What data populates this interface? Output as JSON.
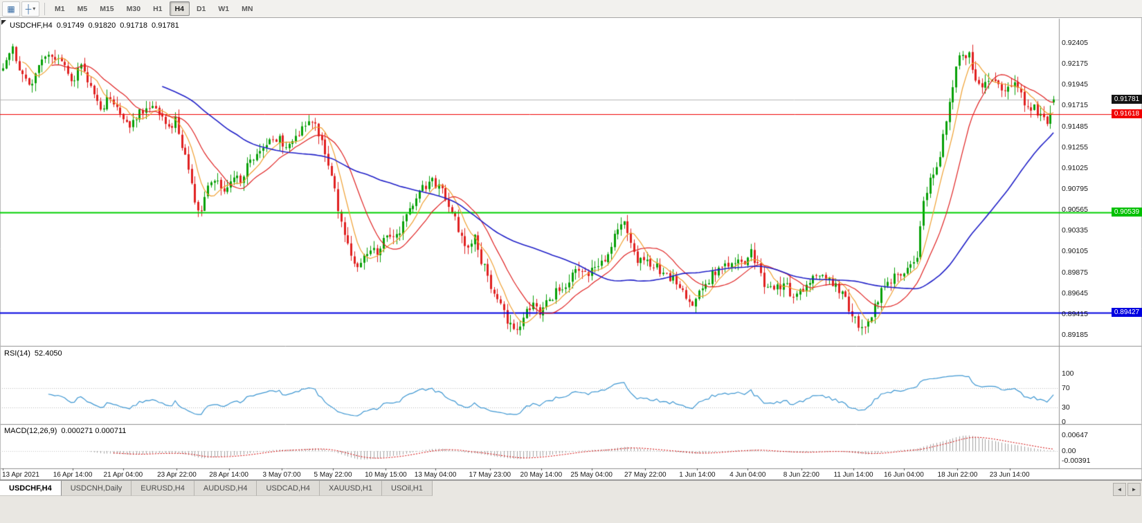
{
  "toolbar": {
    "icons": [
      {
        "name": "chart-window-icon",
        "glyph": "▦"
      },
      {
        "name": "crosshair-tool-icon",
        "glyph": "┼"
      },
      {
        "name": "dropdown-caret-icon",
        "glyph": "▾"
      }
    ],
    "timeframes": [
      {
        "label": "M1",
        "active": false
      },
      {
        "label": "M5",
        "active": false
      },
      {
        "label": "M15",
        "active": false
      },
      {
        "label": "M30",
        "active": false
      },
      {
        "label": "H1",
        "active": false
      },
      {
        "label": "H4",
        "active": true
      },
      {
        "label": "D1",
        "active": false
      },
      {
        "label": "W1",
        "active": false
      },
      {
        "label": "MN",
        "active": false
      }
    ]
  },
  "chart": {
    "title": {
      "symbol": "USDCHF,H4",
      "open": "0.91749",
      "high": "0.91820",
      "low": "0.91718",
      "close": "0.91781"
    }
  },
  "price_axis": {
    "ticks": [
      "0.92405",
      "0.92175",
      "0.91945",
      "0.91715",
      "0.91485",
      "0.91255",
      "0.91025",
      "0.90795",
      "0.90565",
      "0.90335",
      "0.90105",
      "0.89875",
      "0.89645",
      "0.89415",
      "0.89185"
    ],
    "badges": [
      {
        "value": "0.91781",
        "price": 0.91781,
        "color": "#141414"
      },
      {
        "value": "0.91618",
        "price": 0.91618,
        "color": "#f00000"
      },
      {
        "value": "0.90539",
        "price": 0.90539,
        "color": "#00c000"
      },
      {
        "value": "0.89427",
        "price": 0.89427,
        "color": "#0000e0"
      }
    ]
  },
  "indicators": {
    "rsi": {
      "name": "RSI(14)",
      "value": "52.4050",
      "levels": [
        "100",
        "70",
        "30",
        "0"
      ],
      "level_values": [
        100,
        70,
        30,
        0
      ],
      "line_color": "#3C96D2",
      "dotted_levels": [
        70,
        30
      ]
    },
    "macd": {
      "name": "MACD(12,26,9)",
      "values_text": "0.000271 0.000711",
      "main_value": 0.000271,
      "signal_value": 0.000711,
      "levels": [
        "0.00647",
        "0.00",
        "-0.00391"
      ],
      "level_values": [
        0.00647,
        0,
        -0.00391
      ],
      "histogram_color": "#a2a2a2",
      "signal_color": "#d40000"
    }
  },
  "time_axis": {
    "labels": [
      {
        "text": "13 Apr 2021",
        "bar": 0
      },
      {
        "text": "16 Apr 14:00",
        "bar": 21.5
      },
      {
        "text": "21 Apr 04:00",
        "bar": 37
      },
      {
        "text": "23 Apr 22:00",
        "bar": 53.5
      },
      {
        "text": "28 Apr 14:00",
        "bar": 69.5
      },
      {
        "text": "3 May 07:00",
        "bar": 85.75
      },
      {
        "text": "5 May 22:00",
        "bar": 101.5
      },
      {
        "text": "10 May 15:00",
        "bar": 117.75
      },
      {
        "text": "13 May 04:00",
        "bar": 133
      },
      {
        "text": "17 May 23:00",
        "bar": 149.75
      },
      {
        "text": "20 May 14:00",
        "bar": 165.5
      },
      {
        "text": "25 May 04:00",
        "bar": 181
      },
      {
        "text": "27 May 22:00",
        "bar": 197.5
      },
      {
        "text": "1 Jun 14:00",
        "bar": 213.5
      },
      {
        "text": "4 Jun 04:00",
        "bar": 229
      },
      {
        "text": "8 Jun 22:00",
        "bar": 245.5
      },
      {
        "text": "11 Jun 14:00",
        "bar": 261.5
      },
      {
        "text": "16 Jun 04:00",
        "bar": 277
      },
      {
        "text": "18 Jun 22:00",
        "bar": 293.5
      },
      {
        "text": "23 Jun 14:00",
        "bar": 309.5
      }
    ]
  },
  "tabs": {
    "items": [
      {
        "label": "USDCHF,H4",
        "active": true
      },
      {
        "label": "USDCNH,Daily",
        "active": false
      },
      {
        "label": "EURUSD,H4",
        "active": false
      },
      {
        "label": "AUDUSD,H4",
        "active": false
      },
      {
        "label": "USDCAD,H4",
        "active": false
      },
      {
        "label": "XAUUSD,H1",
        "active": false
      },
      {
        "label": "USOil,H1",
        "active": false
      }
    ],
    "scroll_left": "◄",
    "scroll_right": "►"
  },
  "chart_data": {
    "type": "candlestick",
    "symbol": "USDCHF",
    "timeframe": "H4",
    "ohlc_current": {
      "open": 0.91749,
      "high": 0.9182,
      "low": 0.91718,
      "close": 0.91781
    },
    "up_color": "#07A007",
    "down_color": "#E02020",
    "current_price": 0.91781,
    "current_price_line_color": "#b6b6b6",
    "levels": [
      {
        "price": 0.91618,
        "color": "#f00000",
        "width": 1
      },
      {
        "price": 0.90539,
        "color": "#00d000",
        "width": 2
      },
      {
        "price": 0.89427,
        "color": "#0000e0",
        "width": 2
      }
    ],
    "moving_averages": [
      {
        "period": 7,
        "color": "#F0A030"
      },
      {
        "period": 16,
        "color": "#E02020"
      },
      {
        "period": 50,
        "color": "#2020C8"
      }
    ],
    "price_axis": {
      "max": 0.92405,
      "min": 0.89185,
      "step": 0.0023
    },
    "candles_count": 324,
    "price_anchors": [
      [
        0,
        0.9218
      ],
      [
        3,
        0.9232
      ],
      [
        6,
        0.9206
      ],
      [
        9,
        0.9196
      ],
      [
        12,
        0.9222
      ],
      [
        15,
        0.923
      ],
      [
        18,
        0.922
      ],
      [
        21,
        0.92
      ],
      [
        24,
        0.9212
      ],
      [
        27,
        0.9195
      ],
      [
        30,
        0.9168
      ],
      [
        33,
        0.918
      ],
      [
        36,
        0.9158
      ],
      [
        39,
        0.915
      ],
      [
        42,
        0.9163
      ],
      [
        45,
        0.9172
      ],
      [
        48,
        0.9158
      ],
      [
        51,
        0.9148
      ],
      [
        53,
        0.9155
      ],
      [
        55,
        0.9128
      ],
      [
        57,
        0.91
      ],
      [
        59,
        0.9062
      ],
      [
        61,
        0.9055
      ],
      [
        63,
        0.9078
      ],
      [
        65,
        0.9092
      ],
      [
        67,
        0.9076
      ],
      [
        69,
        0.908
      ],
      [
        71,
        0.9092
      ],
      [
        73,
        0.9088
      ],
      [
        75,
        0.9105
      ],
      [
        78,
        0.9118
      ],
      [
        81,
        0.9128
      ],
      [
        84,
        0.9135
      ],
      [
        87,
        0.9128
      ],
      [
        90,
        0.914
      ],
      [
        93,
        0.915
      ],
      [
        95,
        0.9155
      ],
      [
        97,
        0.9138
      ],
      [
        99,
        0.912
      ],
      [
        101,
        0.9095
      ],
      [
        103,
        0.906
      ],
      [
        105,
        0.903
      ],
      [
        107,
        0.9002
      ],
      [
        109,
        0.8992
      ],
      [
        111,
        0.9005
      ],
      [
        113,
        0.9012
      ],
      [
        115,
        0.9008
      ],
      [
        117,
        0.9022
      ],
      [
        119,
        0.903
      ],
      [
        121,
        0.9028
      ],
      [
        123,
        0.904
      ],
      [
        125,
        0.9055
      ],
      [
        127,
        0.907
      ],
      [
        129,
        0.908
      ],
      [
        131,
        0.9088
      ],
      [
        133,
        0.9085
      ],
      [
        135,
        0.9078
      ],
      [
        137,
        0.9062
      ],
      [
        139,
        0.9045
      ],
      [
        141,
        0.9028
      ],
      [
        143,
        0.9015
      ],
      [
        145,
        0.9025
      ],
      [
        147,
        0.9
      ],
      [
        149,
        0.8985
      ],
      [
        151,
        0.8962
      ],
      [
        153,
        0.8948
      ],
      [
        155,
        0.8935
      ],
      [
        157,
        0.8925
      ],
      [
        159,
        0.8932
      ],
      [
        161,
        0.8942
      ],
      [
        163,
        0.895
      ],
      [
        165,
        0.8942
      ],
      [
        167,
        0.8952
      ],
      [
        169,
        0.8962
      ],
      [
        171,
        0.8968
      ],
      [
        174,
        0.898
      ],
      [
        177,
        0.8992
      ],
      [
        180,
        0.8988
      ],
      [
        183,
        0.8998
      ],
      [
        186,
        0.9005
      ],
      [
        188,
        0.9028
      ],
      [
        190,
        0.9045
      ],
      [
        192,
        0.9035
      ],
      [
        194,
        0.9005
      ],
      [
        196,
        0.8998
      ],
      [
        198,
        0.9002
      ],
      [
        201,
        0.8992
      ],
      [
        204,
        0.8985
      ],
      [
        207,
        0.8978
      ],
      [
        210,
        0.8962
      ],
      [
        212,
        0.8952
      ],
      [
        214,
        0.8965
      ],
      [
        216,
        0.8975
      ],
      [
        219,
        0.8988
      ],
      [
        222,
        0.8995
      ],
      [
        225,
        0.9
      ],
      [
        228,
        0.8995
      ],
      [
        230,
        0.9008
      ],
      [
        232,
        0.8998
      ],
      [
        234,
        0.8975
      ],
      [
        237,
        0.8968
      ],
      [
        240,
        0.8975
      ],
      [
        243,
        0.8962
      ],
      [
        246,
        0.897
      ],
      [
        249,
        0.898
      ],
      [
        252,
        0.8988
      ],
      [
        255,
        0.8975
      ],
      [
        258,
        0.8962
      ],
      [
        260,
        0.8948
      ],
      [
        262,
        0.8935
      ],
      [
        264,
        0.8922
      ],
      [
        266,
        0.8932
      ],
      [
        268,
        0.895
      ],
      [
        270,
        0.8965
      ],
      [
        273,
        0.898
      ],
      [
        276,
        0.8988
      ],
      [
        279,
        0.8992
      ],
      [
        281,
        0.9005
      ],
      [
        283,
        0.9065
      ],
      [
        285,
        0.9092
      ],
      [
        287,
        0.9102
      ],
      [
        289,
        0.9135
      ],
      [
        291,
        0.918
      ],
      [
        293,
        0.9212
      ],
      [
        295,
        0.9232
      ],
      [
        297,
        0.9225
      ],
      [
        299,
        0.92
      ],
      [
        301,
        0.919
      ],
      [
        303,
        0.9202
      ],
      [
        305,
        0.9195
      ],
      [
        307,
        0.9185
      ],
      [
        309,
        0.9192
      ],
      [
        311,
        0.9198
      ],
      [
        313,
        0.9185
      ],
      [
        315,
        0.9165
      ],
      [
        317,
        0.9172
      ],
      [
        319,
        0.9158
      ],
      [
        321,
        0.915
      ],
      [
        323,
        0.9178
      ]
    ]
  }
}
